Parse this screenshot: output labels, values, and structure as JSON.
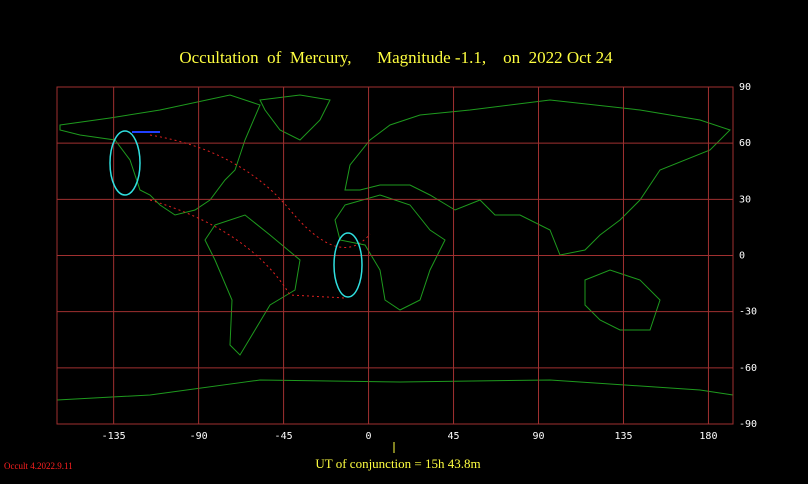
{
  "chart_data": {
    "type": "map",
    "title": "Occultation  of  Mercury,      Magnitude -1.1,    on  2022 Oct 24",
    "xlim": [
      -165,
      193
    ],
    "ylim": [
      -90,
      90
    ],
    "xticks": [
      -135,
      -90,
      -45,
      0,
      45,
      90,
      135,
      180
    ],
    "yticks": [
      90,
      60,
      30,
      0,
      -30,
      -60,
      -90
    ],
    "grid": true,
    "grid_color": "#a03030",
    "annotation": "UT of conjunction = 15h 43.8m",
    "footer": "Occult 4.2022.9.11"
  }
}
